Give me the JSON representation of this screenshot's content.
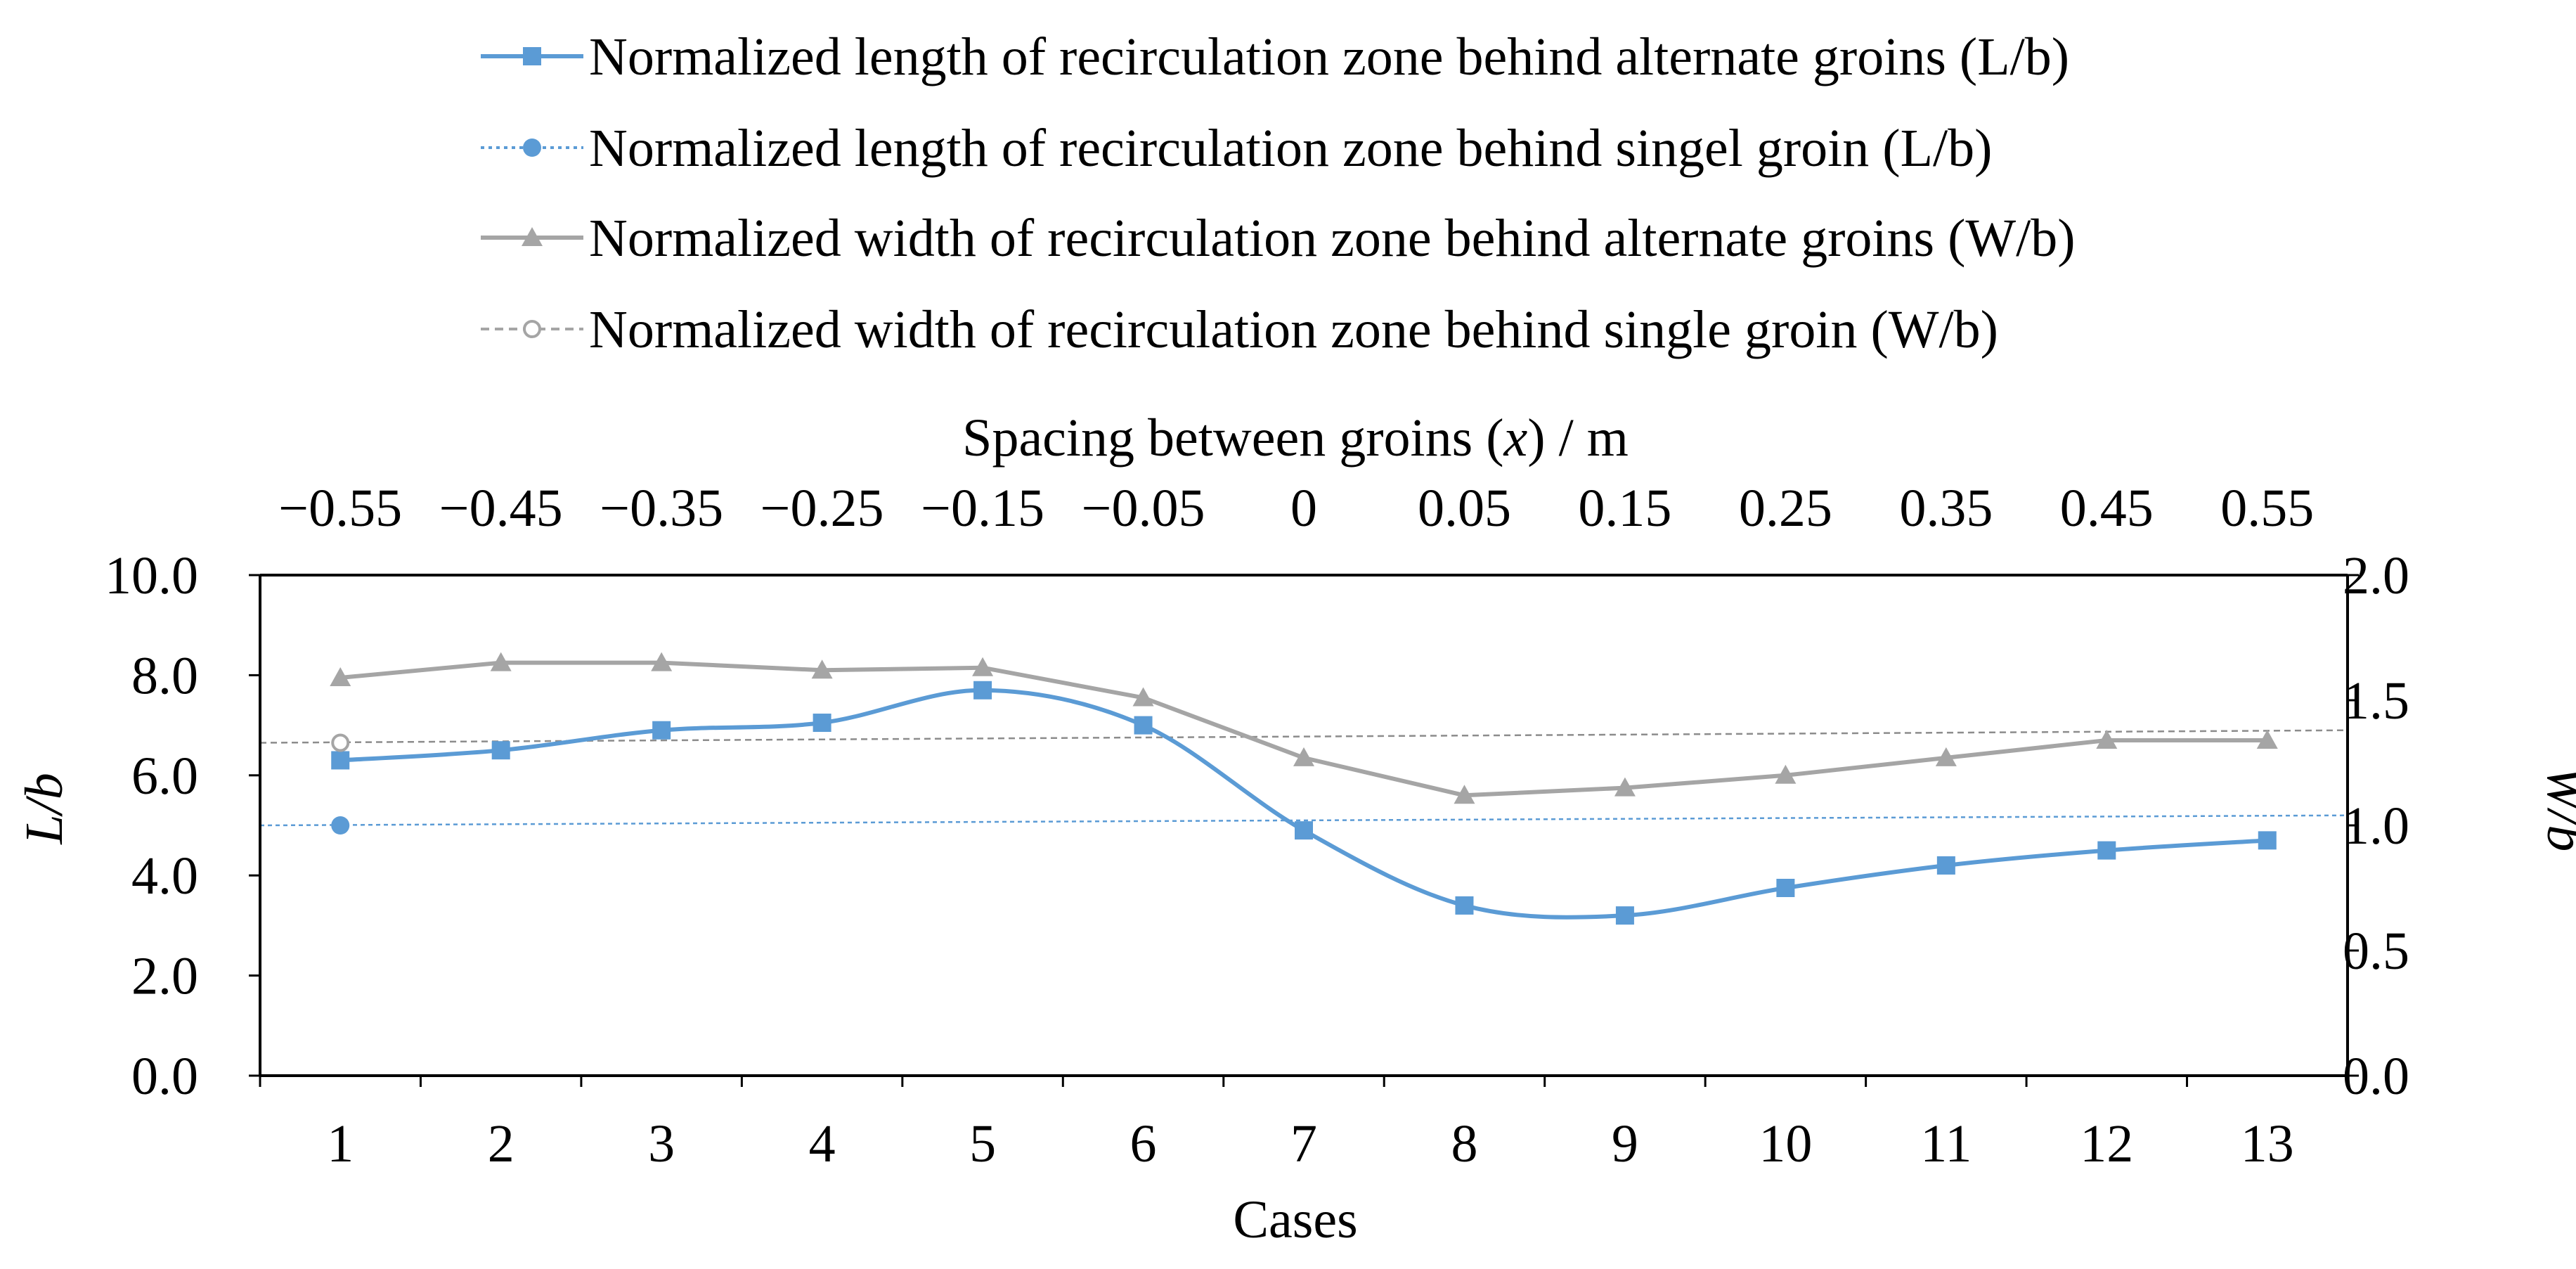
{
  "chart_data": {
    "type": "line",
    "xlabel": "Cases",
    "x2label_prefix": "Spacing between groins (",
    "x2label_var": "x",
    "x2label_suffix": ") / m",
    "ylabel_var": "L/b",
    "y2label_var": "W/b",
    "categories": [
      "1",
      "2",
      "3",
      "4",
      "5",
      "6",
      "7",
      "8",
      "9",
      "10",
      "11",
      "12",
      "13"
    ],
    "top_ticks": [
      "−0.55",
      "−0.45",
      "−0.35",
      "−0.25",
      "−0.15",
      "−0.05",
      "0",
      "0.05",
      "0.15",
      "0.25",
      "0.35",
      "0.45",
      "0.55"
    ],
    "ylim": [
      0,
      10
    ],
    "y_ticks": [
      "0.0",
      "2.0",
      "4.0",
      "6.0",
      "8.0",
      "10.0"
    ],
    "y2lim": [
      0,
      2
    ],
    "y2_ticks": [
      "0.0",
      "0.5",
      "1.0",
      "1.5",
      "2.0"
    ],
    "legend_position": "top",
    "series": [
      {
        "name": "Normalized length of recirculation zone behind alternate groins (L/b)",
        "axis": "left",
        "marker": "square",
        "style": "solid",
        "smooth": true,
        "color": "#5b9bd5",
        "values": [
          6.3,
          6.5,
          6.9,
          7.05,
          7.7,
          7.0,
          4.9,
          3.4,
          3.2,
          3.75,
          4.2,
          4.5,
          4.7
        ]
      },
      {
        "name": "Normalized length of recirculation zone behind singel groin (L/b)",
        "axis": "left",
        "marker": "circle",
        "style": "dotted",
        "smooth": false,
        "color": "#5b9bd5",
        "values": [
          5.0,
          null,
          null,
          null,
          null,
          null,
          null,
          null,
          null,
          null,
          null,
          null,
          null
        ],
        "trendline": {
          "start": 5.0,
          "end": 5.2
        }
      },
      {
        "name": "Normalized width of recirculation zone behind alternate groins (W/b)",
        "axis": "right",
        "marker": "triangle",
        "style": "solid",
        "smooth": false,
        "color": "#a5a5a5",
        "values": [
          1.59,
          1.65,
          1.65,
          1.62,
          1.63,
          1.51,
          1.27,
          1.12,
          1.15,
          1.2,
          1.27,
          1.34,
          1.34
        ]
      },
      {
        "name": "Normalized width of recirculation zone behind single groin (W/b)",
        "axis": "right",
        "marker": "open-circle",
        "style": "dashed",
        "smooth": false,
        "color": "#a5a5a5",
        "values": [
          1.33,
          null,
          null,
          null,
          null,
          null,
          null,
          null,
          null,
          null,
          null,
          null,
          null
        ],
        "trendline": {
          "start": 1.33,
          "end": 1.38
        }
      }
    ]
  }
}
